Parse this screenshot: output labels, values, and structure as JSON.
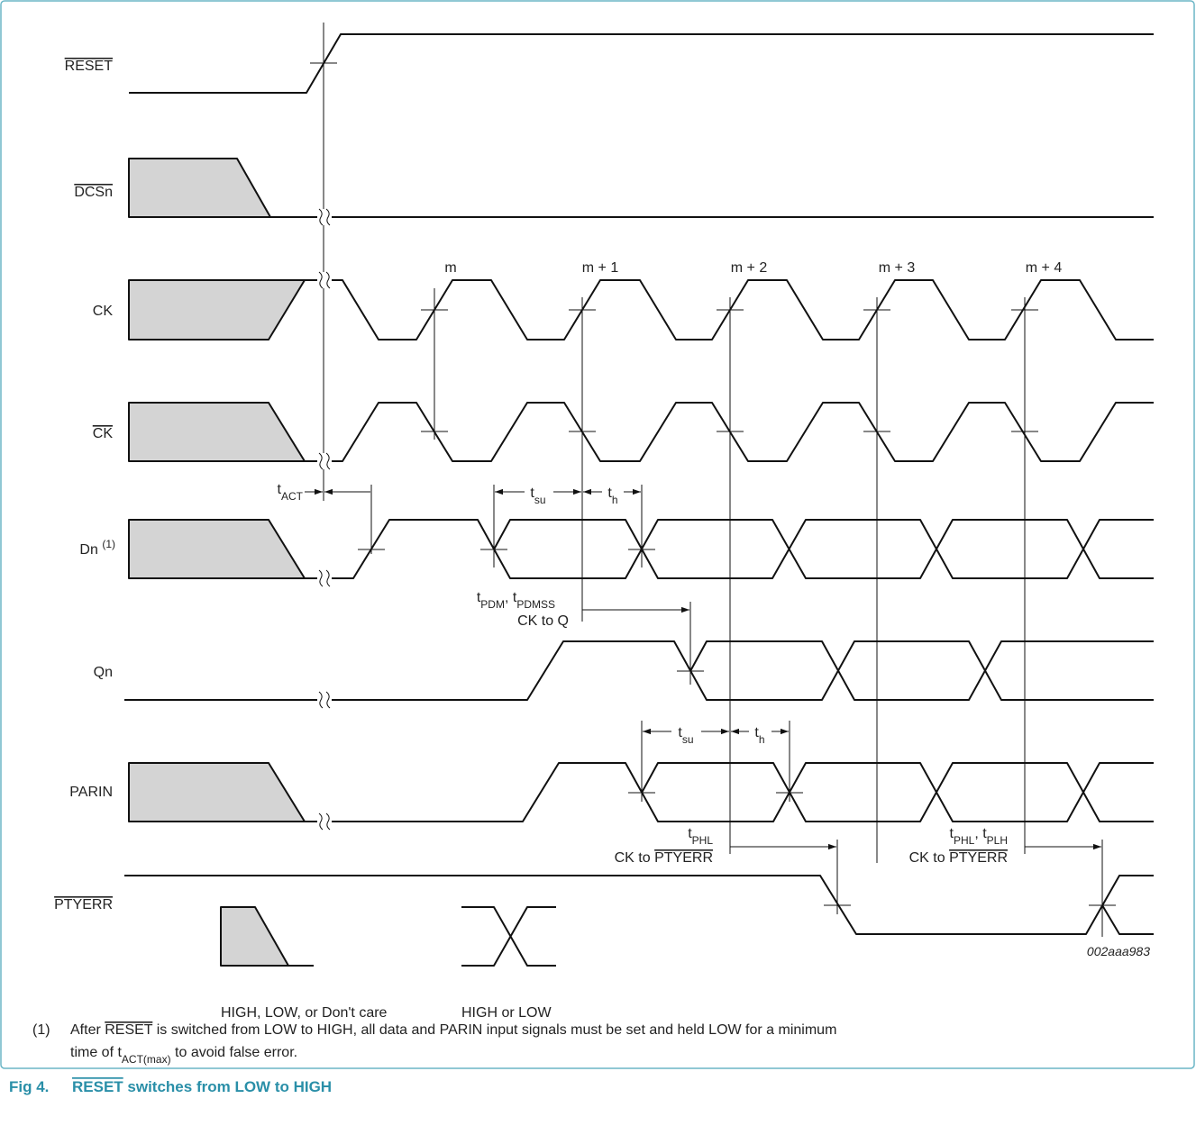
{
  "signals": [
    [
      "RESET"
    ],
    [
      "DCSn"
    ],
    [
      "CK"
    ],
    [
      "CK"
    ],
    [
      "Dn ",
      "(1)"
    ],
    [
      "Qn"
    ],
    [
      "PARIN"
    ],
    [
      "PTYERR"
    ]
  ],
  "clock_edges": [
    "m",
    "m + 1",
    "m + 2",
    "m + 3",
    "m + 4"
  ],
  "timing_labels": {
    "t_act": [
      "t",
      "ACT"
    ],
    "tsu_1": [
      "t",
      "su"
    ],
    "th_1": [
      "t",
      "h"
    ],
    "t_pdm": [
      "t",
      "PDM",
      ", t",
      "PDMSS"
    ],
    "ck_to_q": "CK to Q",
    "tsu_2": [
      "t",
      "su"
    ],
    "th_2": [
      "t",
      "h"
    ],
    "t_phl": [
      "t",
      "PHL"
    ],
    "ck_to_ptyerr_1": [
      "CK to ",
      "PTYERR"
    ],
    "t_phl_plh": [
      "t",
      "PHL",
      ", t",
      "PLH"
    ],
    "ck_to_ptyerr_2": [
      "CK to ",
      "PTYERR"
    ]
  },
  "figure_id": "002aaa983",
  "legend": [
    "HIGH, LOW, or Don't care",
    "HIGH or LOW"
  ],
  "note": {
    "marker": "(1)",
    "lines": [
      [
        "After ",
        "RESET",
        " is switched from LOW to HIGH, all data and PARIN input signals must be set and held LOW for a minimum"
      ],
      [
        "time of t",
        "ACT(max)",
        " to avoid false error."
      ]
    ]
  },
  "caption": {
    "number": "Fig 4.",
    "title": [
      "RESET",
      " switches from LOW to HIGH"
    ]
  }
}
